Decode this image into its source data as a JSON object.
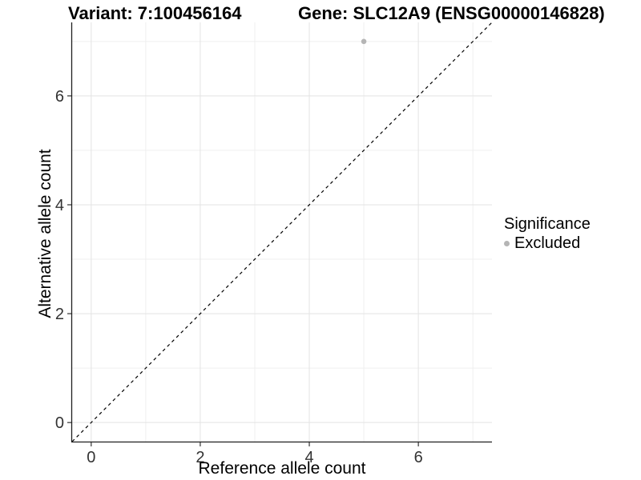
{
  "header": {
    "variant_title": "Variant: 7:100456164",
    "gene_title": "Gene: SLC12A9 (ENSG00000146828)"
  },
  "chart_data": {
    "type": "scatter",
    "title": "Variant: 7:100456164   Gene: SLC12A9 (ENSG00000146828)",
    "xlabel": "Reference allele count",
    "ylabel": "Alternative allele count",
    "xlim": [
      -0.35,
      7.35
    ],
    "ylim": [
      -0.35,
      7.35
    ],
    "x_ticks": [
      0,
      2,
      4,
      6
    ],
    "y_ticks": [
      0,
      2,
      4,
      6
    ],
    "x_minor_breaks": [
      1,
      3,
      5,
      7
    ],
    "y_minor_breaks": [
      1,
      3,
      5,
      7
    ],
    "grid": "major+minor",
    "series": [
      {
        "name": "Excluded",
        "color": "#b5b5b5",
        "marker": "circle",
        "points": [
          {
            "x": 5,
            "y": 7
          }
        ]
      }
    ],
    "reference_line": {
      "slope": 1,
      "intercept": 0,
      "style": "dashed",
      "color": "#000000"
    },
    "legend": {
      "position": "right",
      "title": "Significance",
      "items": [
        {
          "label": "Excluded",
          "color": "#b5b5b5",
          "marker": "circle"
        }
      ]
    }
  },
  "colors": {
    "background": "#ffffff",
    "grid_major": "#e3e3e3",
    "grid_minor": "#efefef",
    "axis_line": "#1f1f1f",
    "tick_mark": "#333333",
    "tick_label": "#333333",
    "title_text": "#000000",
    "point": "#b5b5b5"
  }
}
